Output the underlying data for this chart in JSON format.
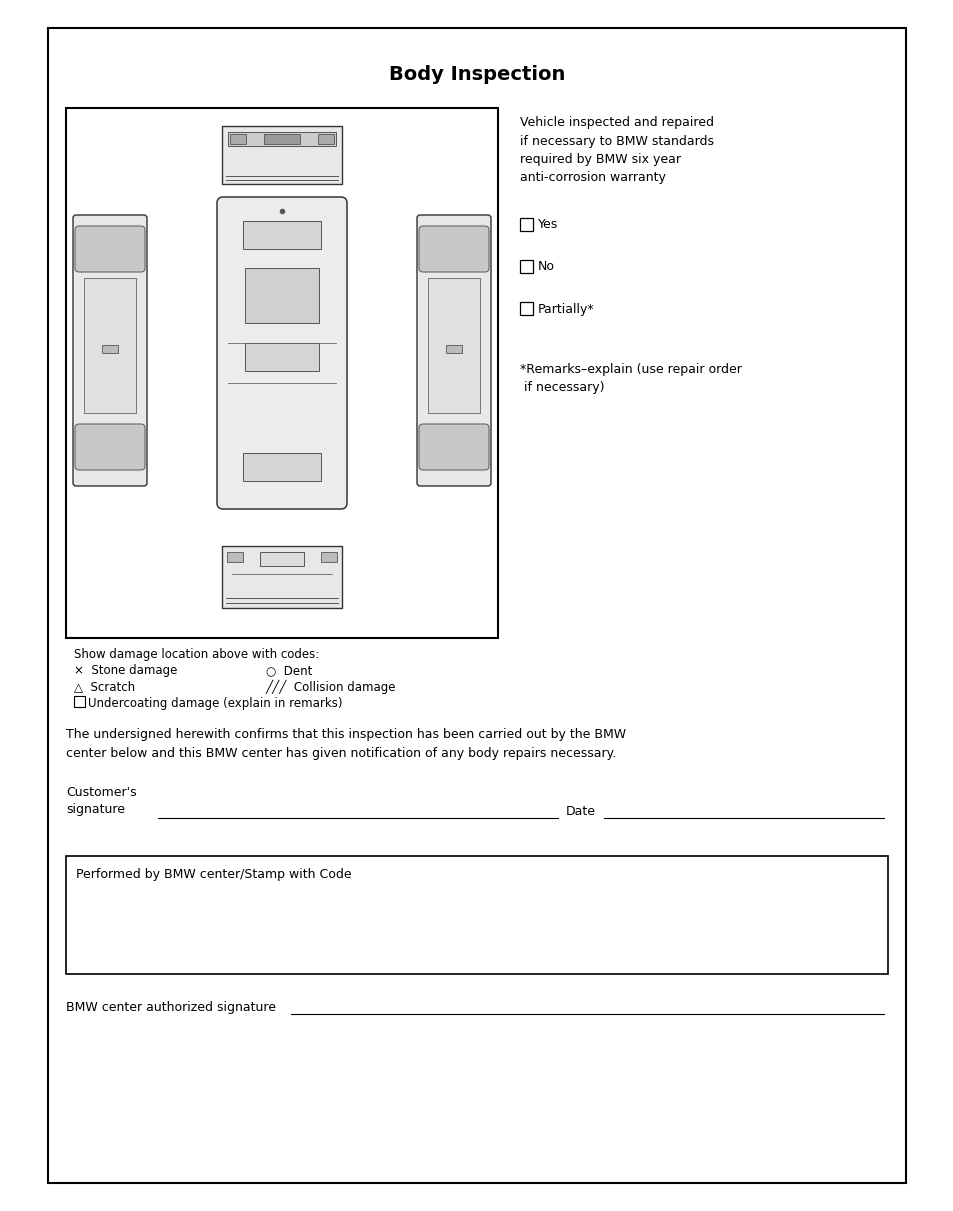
{
  "title": "Body Inspection",
  "title_fontsize": 14,
  "body_fontsize": 9.0,
  "small_fontsize": 8.5,
  "bg_color": "#ffffff",
  "text_color": "#000000",
  "vehicle_text": "Vehicle inspected and repaired\nif necessary to BMW standards\nrequired by BMW six year\nanti-corrosion warranty",
  "checkbox_options": [
    "Yes",
    "No",
    "Partially*"
  ],
  "remarks_text": "*Remarks–explain (use repair order\n if necessary)",
  "damage_header": "Show damage location above with codes:",
  "undercoating": "Undercoating damage (explain in remarks)",
  "confirm_text": "The undersigned herewith confirms that this inspection has been carried out by the BMW\ncenter below and this BMW center has given notification of any body repairs necessary.",
  "customer_label": "Customer's\nsignature",
  "date_label": "Date",
  "stamp_label": "Performed by BMW center/Stamp with Code",
  "auth_sig_label": "BMW center authorized signature"
}
